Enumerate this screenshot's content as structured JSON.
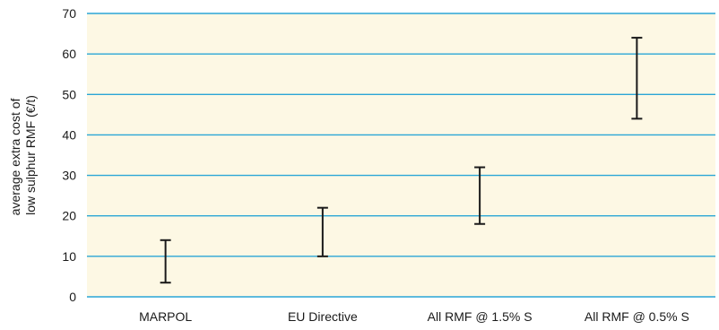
{
  "chart_data": {
    "type": "range",
    "title": "",
    "xlabel": "",
    "ylabel_lines": [
      "average extra cost of",
      "low sulphur RMF (€/t)"
    ],
    "ylim": [
      0,
      70
    ],
    "yticks": [
      0,
      10,
      20,
      30,
      40,
      50,
      60,
      70
    ],
    "grid": true,
    "categories": [
      "MARPOL",
      "EU Directive",
      "All RMF @ 1.5% S",
      "All RMF @ 0.5% S"
    ],
    "ranges": [
      {
        "category": "MARPOL",
        "low": 3.5,
        "high": 14
      },
      {
        "category": "EU Directive",
        "low": 10,
        "high": 22
      },
      {
        "category": "All RMF @ 1.5% S",
        "low": 18,
        "high": 32
      },
      {
        "category": "All RMF @ 0.5% S",
        "low": 44,
        "high": 64
      }
    ],
    "colors": {
      "plot_background": "#fdf8e4",
      "gridline": "#2aa6d6",
      "range_bar": "#1a1a1a"
    }
  }
}
